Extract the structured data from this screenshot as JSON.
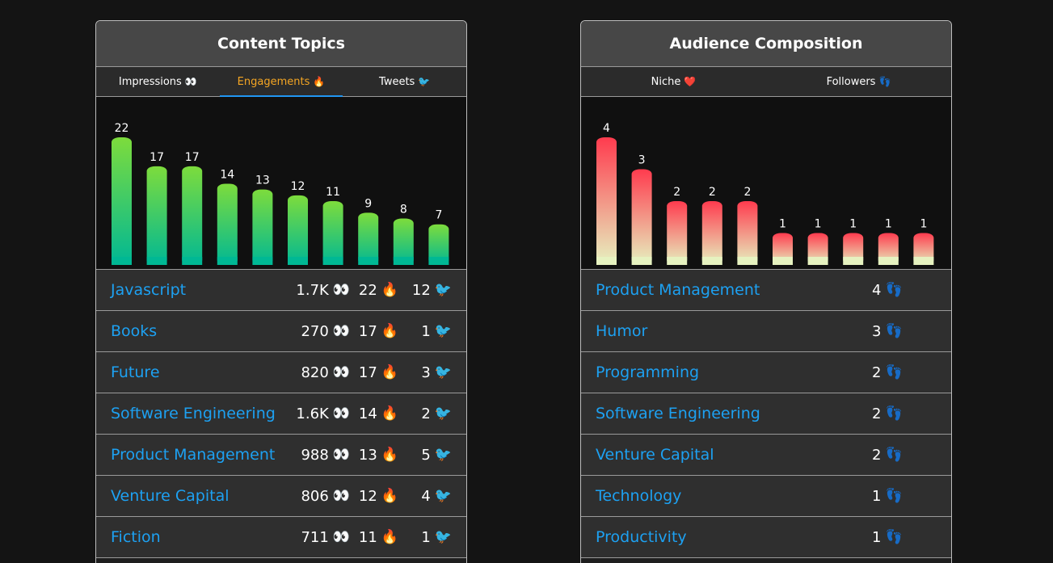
{
  "left": {
    "title": "Content Topics",
    "tabs": [
      {
        "label": "Impressions",
        "emoji": "👀"
      },
      {
        "label": "Engagements",
        "emoji": "🔥"
      },
      {
        "label": "Tweets",
        "emoji": "🐦"
      }
    ],
    "active_tab": 1,
    "bar_colors": {
      "top": "#7ddc3c",
      "bottom": "#00b894"
    },
    "chart_data": {
      "type": "bar",
      "values": [
        22,
        17,
        17,
        14,
        13,
        12,
        11,
        9,
        8,
        7
      ],
      "ylim": [
        0,
        22
      ]
    },
    "rows": [
      {
        "name": "Javascript",
        "impressions": "1.7K",
        "engagements": "22",
        "tweets": "12"
      },
      {
        "name": "Books",
        "impressions": "270",
        "engagements": "17",
        "tweets": "1"
      },
      {
        "name": "Future",
        "impressions": "820",
        "engagements": "17",
        "tweets": "3"
      },
      {
        "name": "Software Engineering",
        "impressions": "1.6K",
        "engagements": "14",
        "tweets": "2"
      },
      {
        "name": "Product Management",
        "impressions": "988",
        "engagements": "13",
        "tweets": "5"
      },
      {
        "name": "Venture Capital",
        "impressions": "806",
        "engagements": "12",
        "tweets": "4"
      },
      {
        "name": "Fiction",
        "impressions": "711",
        "engagements": "11",
        "tweets": "1"
      }
    ],
    "emojis": {
      "impressions": "👀",
      "engagements": "🔥",
      "tweets": "🐦"
    }
  },
  "right": {
    "title": "Audience Composition",
    "tabs": [
      {
        "label": "Niche",
        "emoji": "❤️"
      },
      {
        "label": "Followers",
        "emoji": "👣"
      }
    ],
    "bar_colors": {
      "top": "#ff3b4e",
      "bottom": "#e6f2c0"
    },
    "chart_data": {
      "type": "bar",
      "values": [
        4,
        3,
        2,
        2,
        2,
        1,
        1,
        1,
        1,
        1
      ],
      "ylim": [
        0,
        4
      ]
    },
    "rows": [
      {
        "name": "Product Management",
        "followers": "4"
      },
      {
        "name": "Humor",
        "followers": "3"
      },
      {
        "name": "Programming",
        "followers": "2"
      },
      {
        "name": "Software Engineering",
        "followers": "2"
      },
      {
        "name": "Venture Capital",
        "followers": "2"
      },
      {
        "name": "Technology",
        "followers": "1"
      },
      {
        "name": "Productivity",
        "followers": "1"
      }
    ],
    "emojis": {
      "followers": "👣"
    }
  }
}
